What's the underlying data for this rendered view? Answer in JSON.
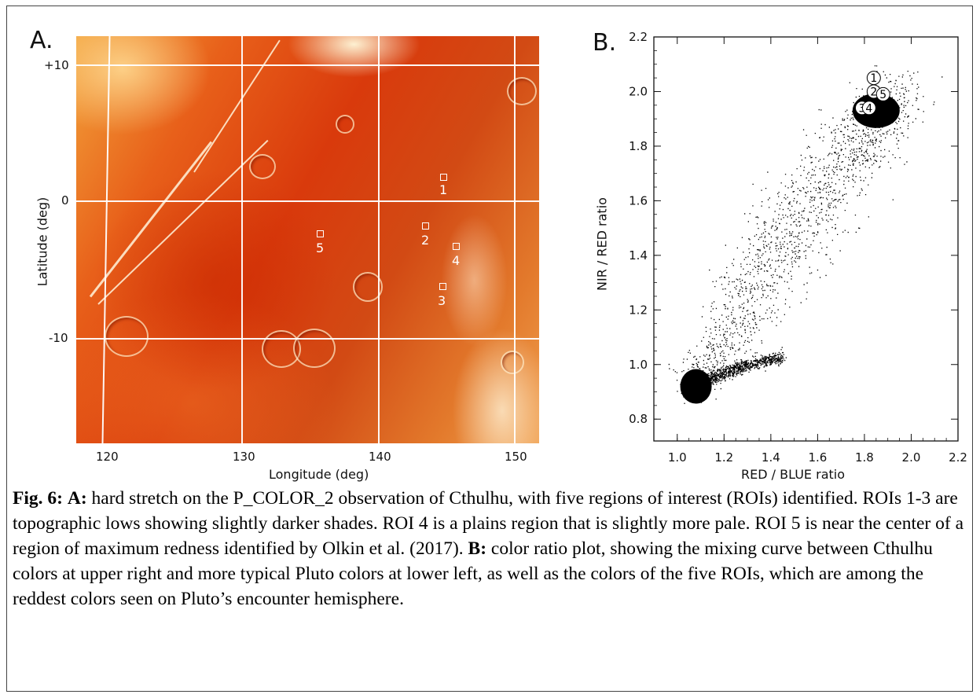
{
  "panel_a": {
    "letter": "A.",
    "y_ticks": [
      "+10",
      "0",
      "-10"
    ],
    "x_ticks": [
      "120",
      "130",
      "140",
      "150"
    ],
    "xlabel": "Longitude (deg)",
    "ylabel": "Latitude (deg)",
    "rois": [
      "1",
      "2",
      "3",
      "4",
      "5"
    ],
    "colors": {
      "image_base": "#d93a0c",
      "grid": "#ffffff"
    }
  },
  "chart_data": {
    "type": "scatter",
    "panel_letter": "B.",
    "xlabel": "RED / BLUE ratio",
    "ylabel": "NIR / RED ratio",
    "xlim": [
      0.9,
      2.2
    ],
    "ylim": [
      0.72,
      2.2
    ],
    "x_ticks": [
      1.0,
      1.2,
      1.4,
      1.6,
      1.8,
      2.0,
      2.2
    ],
    "x_tick_labels": [
      "1.0",
      "1.2",
      "1.4",
      "1.6",
      "1.8",
      "2.0",
      "2.2"
    ],
    "y_ticks": [
      0.8,
      1.0,
      1.2,
      1.4,
      1.6,
      1.8,
      2.0,
      2.2
    ],
    "y_tick_labels": [
      "0.8",
      "1.0",
      "1.2",
      "1.4",
      "1.6",
      "1.8",
      "2.0",
      "2.2"
    ],
    "grid": false,
    "point_color": "#000000",
    "mixing_curve_core": [
      {
        "x": 1.05,
        "y": 0.93
      },
      {
        "x": 1.15,
        "y": 1.02
      },
      {
        "x": 1.25,
        "y": 1.18
      },
      {
        "x": 1.35,
        "y": 1.33
      },
      {
        "x": 1.45,
        "y": 1.45
      },
      {
        "x": 1.55,
        "y": 1.57
      },
      {
        "x": 1.65,
        "y": 1.68
      },
      {
        "x": 1.75,
        "y": 1.8
      },
      {
        "x": 1.85,
        "y": 1.9
      },
      {
        "x": 1.95,
        "y": 1.98
      }
    ],
    "branch": [
      {
        "x": 1.1,
        "y": 0.94
      },
      {
        "x": 1.2,
        "y": 0.97
      },
      {
        "x": 1.3,
        "y": 1.0
      },
      {
        "x": 1.45,
        "y": 1.03
      }
    ],
    "roi_points": [
      {
        "label": "1",
        "x": 1.84,
        "y": 2.05
      },
      {
        "label": "2",
        "x": 1.84,
        "y": 2.0
      },
      {
        "label": "5",
        "x": 1.88,
        "y": 1.99
      },
      {
        "label": "3",
        "x": 1.79,
        "y": 1.94
      },
      {
        "label": "4",
        "x": 1.82,
        "y": 1.94
      }
    ]
  },
  "caption": {
    "fig_label": "Fig. 6:",
    "a_label": "A:",
    "a_text": " hard stretch on the P_COLOR_2 observation of Cthulhu, with five regions of interest (ROIs) identified.  ROIs 1-3 are topographic lows showing slightly darker shades.  ROI 4 is a plains region that is slightly more pale.  ROI 5 is near the center of a region of maximum redness identified by Olkin et al. (2017).  ",
    "b_label": "B:",
    "b_text": " color ratio plot, showing the mixing curve between Cthulhu colors at upper right and more typical Pluto colors at lower left, as well as the colors of the five ROIs, which are among the reddest colors seen on Pluto’s encounter hemisphere."
  }
}
